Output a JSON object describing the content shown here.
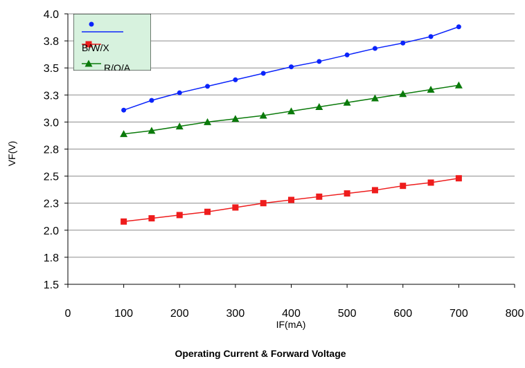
{
  "chart_data": {
    "type": "line",
    "title": "Operating Current & Forward Voltage",
    "xlabel": "IF(mA)",
    "ylabel": "VF(V)",
    "xlim": [
      0,
      800
    ],
    "ylim": [
      1.5,
      4.0
    ],
    "x_ticks": [
      0,
      100,
      200,
      300,
      400,
      500,
      600,
      700,
      800
    ],
    "y_ticks": [
      1.5,
      1.75,
      2.0,
      2.25,
      2.5,
      2.75,
      3.0,
      3.25,
      3.5,
      3.75,
      4.0
    ],
    "y_tick_labels": [
      "1.5",
      "1.8",
      "2.0",
      "2.3",
      "2.5",
      "2.8",
      "3.0",
      "3.3",
      "3.5",
      "3.8",
      "4.0"
    ],
    "x_tick_labels": [
      "0",
      "100",
      "200",
      "300",
      "400",
      "500",
      "600",
      "700",
      "800"
    ],
    "grid": "horizontal",
    "legend_position": "top-left",
    "x": [
      100,
      150,
      200,
      250,
      300,
      350,
      400,
      450,
      500,
      550,
      600,
      650,
      700
    ],
    "series": [
      {
        "name": "",
        "marker": "circle",
        "color": "#0b24fb",
        "values": [
          3.11,
          3.2,
          3.27,
          3.33,
          3.39,
          3.45,
          3.51,
          3.56,
          3.62,
          3.68,
          3.73,
          3.79,
          3.88
        ]
      },
      {
        "name": "B/W/X",
        "marker": "square",
        "color": "#ee1c1c",
        "values": [
          2.08,
          2.11,
          2.14,
          2.17,
          2.21,
          2.25,
          2.28,
          2.31,
          2.34,
          2.37,
          2.41,
          2.44,
          2.48
        ]
      },
      {
        "name": "R/O/A",
        "marker": "triangle",
        "color": "#0a7a0a",
        "values": [
          2.89,
          2.92,
          2.96,
          3.0,
          3.03,
          3.06,
          3.1,
          3.14,
          3.18,
          3.22,
          3.26,
          3.3,
          3.34
        ]
      }
    ]
  }
}
